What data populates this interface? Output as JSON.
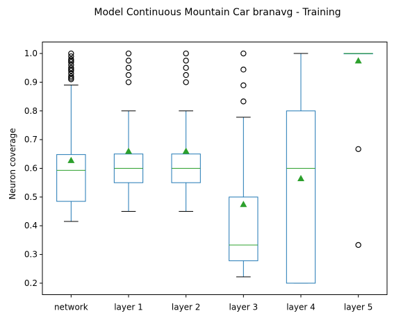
{
  "chart_data": {
    "type": "box",
    "title": "Model Continuous Mountain Car branavg - Training",
    "xlabel": "",
    "ylabel": "Neuron coverage",
    "ylim": [
      0.16,
      1.04
    ],
    "yticks": [
      "0.2",
      "0.3",
      "0.4",
      "0.5",
      "0.6",
      "0.7",
      "0.8",
      "0.9",
      "1.0"
    ],
    "categories": [
      "network",
      "layer 1",
      "layer 2",
      "layer 3",
      "layer 4",
      "layer 5"
    ],
    "boxes": [
      {
        "label": "network",
        "whisker_low": 0.415,
        "q1": 0.485,
        "median": 0.593,
        "q3": 0.648,
        "whisker_high": 0.89,
        "mean": 0.628,
        "outliers": [
          0.91,
          0.915,
          0.92,
          0.93,
          0.94,
          0.945,
          0.95,
          0.96,
          0.97,
          0.975,
          0.98,
          0.99,
          1.0
        ]
      },
      {
        "label": "layer 1",
        "whisker_low": 0.45,
        "q1": 0.55,
        "median": 0.6,
        "q3": 0.65,
        "whisker_high": 0.8,
        "mean": 0.66,
        "outliers": [
          0.9,
          0.925,
          0.95,
          0.975,
          1.0
        ]
      },
      {
        "label": "layer 2",
        "whisker_low": 0.45,
        "q1": 0.55,
        "median": 0.6,
        "q3": 0.65,
        "whisker_high": 0.8,
        "mean": 0.66,
        "outliers": [
          0.9,
          0.925,
          0.95,
          0.975,
          1.0
        ]
      },
      {
        "label": "layer 3",
        "whisker_low": 0.222,
        "q1": 0.278,
        "median": 0.333,
        "q3": 0.5,
        "whisker_high": 0.778,
        "mean": 0.475,
        "outliers": [
          0.833,
          0.889,
          0.944,
          1.0
        ]
      },
      {
        "label": "layer 4",
        "whisker_low": 0.2,
        "q1": 0.2,
        "median": 0.6,
        "q3": 0.8,
        "whisker_high": 1.0,
        "mean": 0.565,
        "outliers": []
      },
      {
        "label": "layer 5",
        "whisker_low": 1.0,
        "q1": 1.0,
        "median": 1.0,
        "q3": 1.0,
        "whisker_high": 1.0,
        "mean": 0.975,
        "outliers": [
          0.333,
          0.667
        ]
      }
    ],
    "colors": {
      "box": "#1f77b4",
      "median": "#2ca02c",
      "mean": "#2ca02c",
      "outlier": "#000000",
      "axes": "#000000"
    },
    "grid": false,
    "legend": "none"
  }
}
